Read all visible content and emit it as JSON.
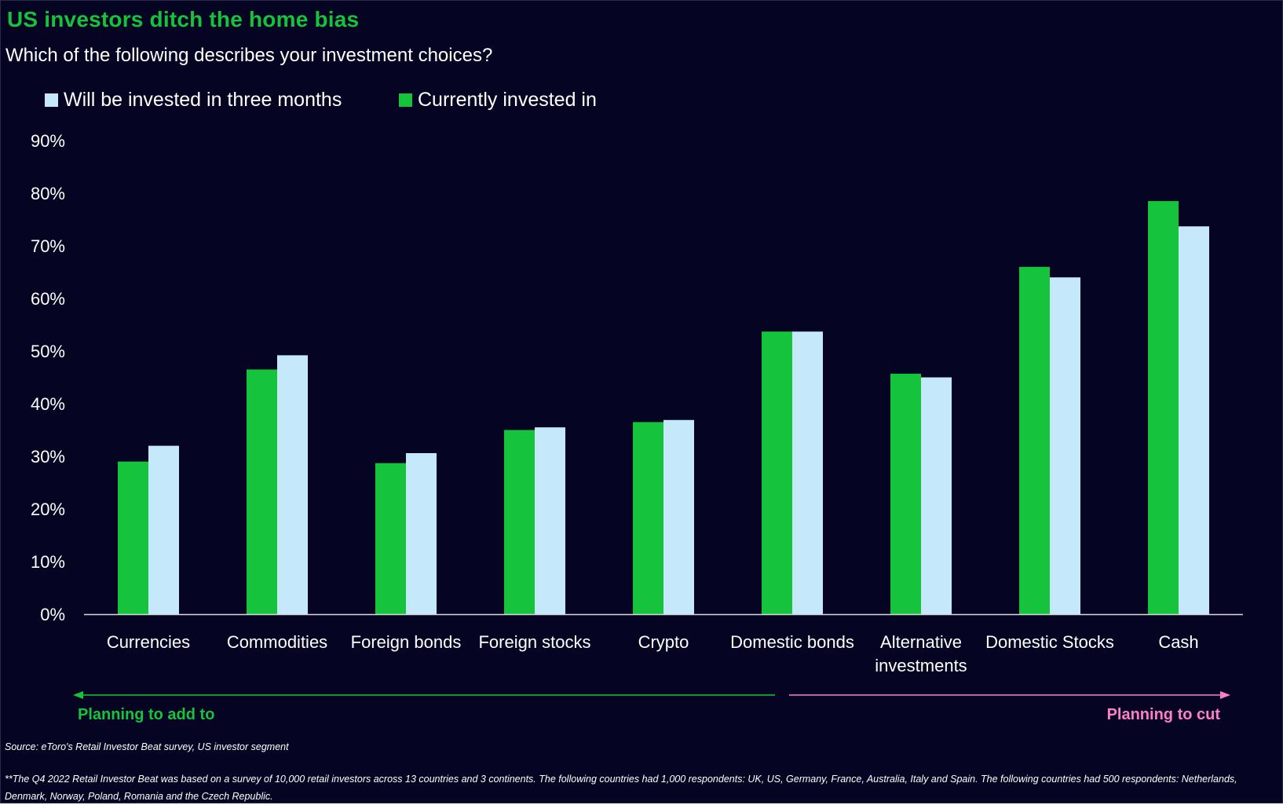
{
  "colors": {
    "background": "#050523",
    "title": "#15c43c",
    "currently_invested": "#15c43c",
    "will_be_invested": "#c6e8fb",
    "add_annotation": "#15c43c",
    "cut_annotation": "#ff7fc6",
    "text": "#ffffff"
  },
  "header": {
    "title": "US investors ditch the home bias",
    "subtitle": "Which of the following describes your investment choices?"
  },
  "legend": {
    "will_be_invested": "Will be invested in three months",
    "currently_invested": "Currently invested in"
  },
  "annotations": {
    "add": "Planning to add to",
    "cut": "Planning to cut"
  },
  "notes": {
    "source": "Source: eToro's Retail Investor Beat survey, US investor segment",
    "footnote": "**The Q4 2022 Retail Investor Beat was based on a survey of 10,000 retail investors across 13 countries and 3 continents. The following countries had 1,000 respondents: UK, US, Germany, France, Australia, Italy and Spain. The following countries had 500 respondents: Netherlands, Denmark, Norway, Poland, Romania and the Czech Republic."
  },
  "chart_data": {
    "type": "bar",
    "title": "US investors ditch the home bias",
    "subtitle": "Which of the following describes your investment choices?",
    "categories": [
      [
        "Currencies"
      ],
      [
        "Commodities"
      ],
      [
        "Foreign bonds"
      ],
      [
        "Foreign stocks"
      ],
      [
        "Crypto"
      ],
      [
        "Domestic bonds"
      ],
      [
        "Alternative",
        "investments"
      ],
      [
        "Domestic Stocks"
      ],
      [
        "Cash"
      ]
    ],
    "series": [
      {
        "name": "Currently invested in",
        "color": "#15c43c",
        "values": [
          29,
          46.5,
          28.7,
          35,
          36.5,
          53.7,
          45.7,
          66,
          78.5
        ]
      },
      {
        "name": "Will be invested in three months",
        "color": "#c6e8fb",
        "values": [
          32,
          49.2,
          30.6,
          35.5,
          36.9,
          53.7,
          45,
          64,
          73.7
        ]
      }
    ],
    "ylim": [
      0,
      90
    ],
    "yticks": [
      0,
      10,
      20,
      30,
      40,
      50,
      60,
      70,
      80,
      90
    ],
    "ytick_labels": [
      "0%",
      "10%",
      "20%",
      "30%",
      "40%",
      "50%",
      "60%",
      "70%",
      "80%",
      "90%"
    ],
    "grid": false,
    "legend_position": "top-left"
  }
}
